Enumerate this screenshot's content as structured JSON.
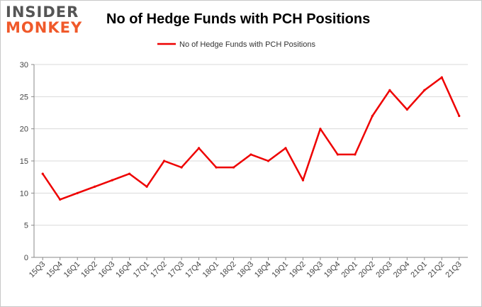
{
  "logo": {
    "line1": "INSIDER",
    "line2": "MONKEY"
  },
  "chart_data": {
    "type": "line",
    "title": "No of Hedge Funds with PCH Positions",
    "categories": [
      "15Q3",
      "15Q4",
      "16Q1",
      "16Q2",
      "16Q3",
      "16Q4",
      "17Q1",
      "17Q2",
      "17Q3",
      "17Q4",
      "18Q1",
      "18Q2",
      "18Q3",
      "18Q4",
      "19Q1",
      "19Q2",
      "19Q3",
      "19Q4",
      "20Q1",
      "20Q2",
      "20Q3",
      "20Q4",
      "21Q1",
      "21Q2",
      "21Q3"
    ],
    "series": [
      {
        "name": "No of Hedge Funds with PCH Positions",
        "color": "#ee0000",
        "values": [
          13,
          9,
          10,
          11,
          12,
          13,
          11,
          15,
          14,
          17,
          14,
          14,
          16,
          15,
          17,
          12,
          20,
          16,
          16,
          22,
          26,
          23,
          26,
          28,
          22
        ]
      }
    ],
    "ylim": [
      0,
      30
    ],
    "yticks": [
      0,
      5,
      10,
      15,
      20,
      25,
      30
    ],
    "grid": true,
    "legend": "top-center",
    "xlabel": "",
    "ylabel": ""
  }
}
